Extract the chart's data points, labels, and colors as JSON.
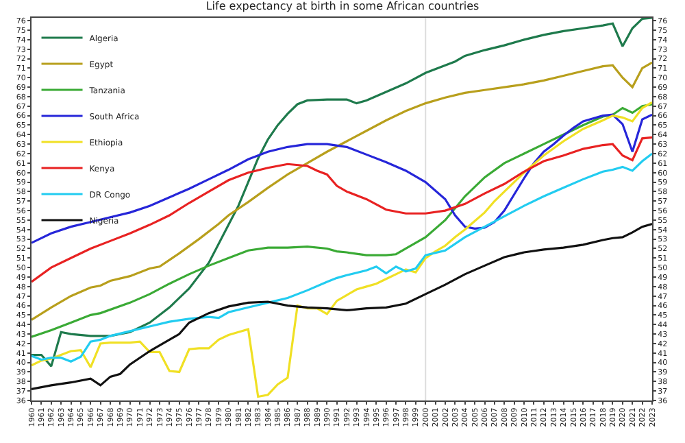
{
  "chart_data": {
    "type": "line",
    "title": "Life expectancy at birth in some African countries",
    "xlim": [
      1960,
      2023
    ],
    "xticks": [
      1960,
      1961,
      1962,
      1963,
      1964,
      1965,
      1966,
      1967,
      1968,
      1969,
      1970,
      1971,
      1972,
      1973,
      1974,
      1975,
      1976,
      1977,
      1978,
      1979,
      1980,
      1981,
      1982,
      1983,
      1984,
      1985,
      1986,
      1987,
      1988,
      1989,
      1990,
      1991,
      1992,
      1993,
      1994,
      1995,
      1996,
      1997,
      1998,
      1999,
      2000,
      2001,
      2002,
      2003,
      2004,
      2005,
      2006,
      2007,
      2008,
      2009,
      2010,
      2011,
      2012,
      2013,
      2014,
      2015,
      2016,
      2017,
      2018,
      2019,
      2020,
      2021,
      2022,
      2023
    ],
    "ylim": [
      36,
      76.3
    ],
    "yticks": [
      36,
      37,
      38,
      39,
      40,
      41,
      42,
      43,
      44,
      45,
      46,
      47,
      48,
      49,
      50,
      51,
      52,
      53,
      54,
      55,
      56,
      57,
      58,
      59,
      60,
      61,
      62,
      63,
      64,
      65,
      66,
      67,
      68,
      69,
      70,
      71,
      72,
      73,
      74,
      75,
      76
    ],
    "y2lim": [
      36,
      76.3
    ],
    "y2ticks": [
      36,
      37,
      38,
      39,
      40,
      41,
      42,
      43,
      44,
      45,
      46,
      47,
      48,
      49,
      50,
      51,
      52,
      53,
      54,
      55,
      56,
      57,
      58,
      59,
      60,
      61,
      62,
      63,
      64,
      65,
      66,
      67,
      68,
      69,
      70,
      71,
      72,
      73,
      74,
      75,
      76
    ],
    "grid": false,
    "legend": "top left",
    "marker": "none",
    "line_style": "solid",
    "ref_lines": [
      {
        "axis": "x",
        "value": 2000,
        "label": null,
        "color": "#dddddd"
      }
    ],
    "series": [
      {
        "name": "Algeria",
        "color": "#1e7a4c",
        "x": [
          1960,
          1961,
          1962,
          1963,
          1964,
          1966,
          1968,
          1970,
          1972,
          1974,
          1976,
          1978,
          1980,
          1981,
          1982,
          1983,
          1984,
          1985,
          1986,
          1987,
          1988,
          1990,
          1992,
          1993,
          1994,
          1996,
          1998,
          2000,
          2002,
          2003,
          2004,
          2006,
          2008,
          2010,
          2012,
          2014,
          2016,
          2018,
          2019,
          2020,
          2021,
          2022,
          2023
        ],
        "values": [
          40.8,
          40.8,
          39.6,
          43.2,
          43.0,
          42.8,
          42.8,
          43.2,
          44.2,
          45.8,
          47.8,
          50.5,
          54.5,
          56.5,
          59.0,
          61.5,
          63.5,
          65.0,
          66.2,
          67.2,
          67.6,
          67.7,
          67.7,
          67.3,
          67.6,
          68.5,
          69.4,
          70.5,
          71.3,
          71.7,
          72.3,
          72.9,
          73.4,
          74.0,
          74.5,
          74.9,
          75.2,
          75.5,
          75.7,
          73.3,
          75.2,
          76.2,
          76.3
        ]
      },
      {
        "name": "Egypt",
        "color": "#b89f1c",
        "x": [
          1960,
          1962,
          1964,
          1966,
          1967,
          1968,
          1970,
          1972,
          1973,
          1975,
          1977,
          1979,
          1980,
          1982,
          1984,
          1986,
          1988,
          1990,
          1992,
          1994,
          1996,
          1998,
          2000,
          2002,
          2004,
          2006,
          2008,
          2010,
          2012,
          2014,
          2016,
          2018,
          2019,
          2020,
          2021,
          2022,
          2023
        ],
        "values": [
          44.5,
          45.8,
          47.0,
          47.9,
          48.1,
          48.6,
          49.1,
          49.9,
          50.1,
          51.5,
          53.0,
          54.6,
          55.5,
          56.9,
          58.4,
          59.8,
          61.0,
          62.2,
          63.3,
          64.4,
          65.5,
          66.5,
          67.3,
          67.9,
          68.4,
          68.7,
          69.0,
          69.3,
          69.7,
          70.2,
          70.7,
          71.2,
          71.3,
          70.0,
          69.0,
          71.0,
          71.6
        ]
      },
      {
        "name": "Tanzania",
        "color": "#3aaa35",
        "x": [
          1960,
          1962,
          1964,
          1966,
          1967,
          1970,
          1972,
          1974,
          1976,
          1978,
          1980,
          1982,
          1984,
          1986,
          1988,
          1990,
          1991,
          1992,
          1994,
          1996,
          1997,
          1998,
          2000,
          2002,
          2004,
          2006,
          2008,
          2010,
          2012,
          2014,
          2016,
          2018,
          2019,
          2020,
          2021,
          2022,
          2023
        ],
        "values": [
          42.7,
          43.4,
          44.2,
          45.0,
          45.2,
          46.3,
          47.2,
          48.3,
          49.3,
          50.2,
          51.0,
          51.8,
          52.1,
          52.1,
          52.2,
          52.0,
          51.7,
          51.6,
          51.3,
          51.3,
          51.4,
          52.0,
          53.2,
          55.0,
          57.5,
          59.5,
          61.0,
          62.0,
          63.0,
          64.0,
          65.0,
          65.9,
          66.1,
          66.8,
          66.3,
          67.0,
          67.2
        ]
      },
      {
        "name": "South Africa",
        "color": "#2626d9",
        "x": [
          1960,
          1962,
          1964,
          1966,
          1968,
          1970,
          1972,
          1974,
          1976,
          1978,
          1980,
          1982,
          1984,
          1986,
          1988,
          1990,
          1992,
          1994,
          1996,
          1998,
          2000,
          2002,
          2003,
          2004,
          2005,
          2006,
          2007,
          2008,
          2009,
          2010,
          2011,
          2012,
          2013,
          2014,
          2015,
          2016,
          2017,
          2018,
          2019,
          2020,
          2021,
          2022,
          2023
        ],
        "values": [
          52.6,
          53.6,
          54.3,
          54.8,
          55.3,
          55.8,
          56.5,
          57.4,
          58.3,
          59.3,
          60.3,
          61.4,
          62.2,
          62.7,
          63.0,
          63.0,
          62.7,
          61.9,
          61.1,
          60.2,
          59.0,
          57.2,
          55.5,
          54.3,
          54.1,
          54.2,
          54.8,
          56.0,
          57.7,
          59.4,
          61.0,
          62.2,
          63.0,
          63.9,
          64.7,
          65.4,
          65.7,
          66.0,
          66.1,
          65.1,
          62.2,
          65.6,
          66.1
        ]
      },
      {
        "name": "Ethiopia",
        "color": "#f0e024",
        "x": [
          1960,
          1961,
          1962,
          1963,
          1964,
          1965,
          1966,
          1967,
          1968,
          1970,
          1971,
          1972,
          1973,
          1974,
          1975,
          1976,
          1977,
          1978,
          1979,
          1980,
          1981,
          1982,
          1983,
          1984,
          1985,
          1986,
          1987,
          1988,
          1989,
          1990,
          1991,
          1992,
          1993,
          1994,
          1995,
          1996,
          1997,
          1998,
          1999,
          2000,
          2001,
          2002,
          2003,
          2004,
          2005,
          2006,
          2007,
          2008,
          2010,
          2012,
          2014,
          2016,
          2018,
          2019,
          2020,
          2021,
          2022,
          2023
        ],
        "values": [
          39.7,
          40.2,
          40.4,
          40.8,
          41.2,
          41.3,
          39.5,
          42.0,
          42.1,
          42.1,
          42.2,
          41.1,
          41.1,
          39.1,
          39.0,
          41.4,
          41.5,
          41.5,
          42.4,
          42.9,
          43.2,
          43.5,
          36.4,
          36.6,
          37.7,
          38.4,
          46.0,
          45.7,
          45.7,
          45.1,
          46.5,
          47.1,
          47.7,
          48.0,
          48.3,
          48.8,
          49.3,
          49.8,
          49.5,
          51.0,
          51.7,
          52.3,
          53.2,
          54.0,
          54.9,
          55.8,
          57.0,
          58.0,
          60.0,
          61.8,
          63.3,
          64.6,
          65.5,
          66.0,
          65.8,
          65.4,
          66.8,
          67.4
        ]
      },
      {
        "name": "Kenya",
        "color": "#e82222",
        "x": [
          1960,
          1962,
          1964,
          1966,
          1968,
          1970,
          1972,
          1974,
          1976,
          1978,
          1980,
          1982,
          1984,
          1986,
          1988,
          1989,
          1990,
          1991,
          1992,
          1994,
          1996,
          1998,
          2000,
          2002,
          2004,
          2006,
          2008,
          2010,
          2012,
          2014,
          2016,
          2018,
          2019,
          2020,
          2021,
          2022,
          2023
        ],
        "values": [
          48.5,
          50.0,
          51.0,
          52.0,
          52.8,
          53.6,
          54.5,
          55.5,
          56.8,
          58.0,
          59.2,
          60.0,
          60.5,
          60.9,
          60.7,
          60.2,
          59.8,
          58.6,
          58.0,
          57.2,
          56.1,
          55.7,
          55.7,
          56.0,
          56.7,
          57.8,
          58.8,
          60.1,
          61.2,
          61.8,
          62.5,
          62.9,
          63.0,
          61.8,
          61.3,
          63.6,
          63.7
        ]
      },
      {
        "name": "DR Congo",
        "color": "#22ccf0",
        "x": [
          1960,
          1961,
          1962,
          1963,
          1964,
          1965,
          1966,
          1967,
          1968,
          1970,
          1972,
          1974,
          1976,
          1978,
          1979,
          1980,
          1982,
          1984,
          1986,
          1988,
          1990,
          1991,
          1992,
          1994,
          1995,
          1996,
          1997,
          1998,
          1999,
          2000,
          2002,
          2004,
          2006,
          2008,
          2010,
          2012,
          2014,
          2016,
          2018,
          2019,
          2020,
          2021,
          2022,
          2023
        ],
        "values": [
          40.7,
          40.3,
          40.5,
          40.5,
          40.1,
          40.6,
          42.2,
          42.4,
          42.8,
          43.3,
          43.8,
          44.3,
          44.6,
          44.8,
          44.7,
          45.3,
          45.8,
          46.3,
          46.8,
          47.6,
          48.5,
          48.9,
          49.2,
          49.7,
          50.1,
          49.4,
          50.1,
          49.6,
          49.9,
          51.3,
          51.8,
          53.2,
          54.3,
          55.4,
          56.5,
          57.5,
          58.4,
          59.3,
          60.1,
          60.3,
          60.6,
          60.2,
          61.2,
          62.0
        ]
      },
      {
        "name": "Nigeria",
        "color": "#111111",
        "x": [
          1960,
          1962,
          1964,
          1966,
          1967,
          1968,
          1969,
          1970,
          1972,
          1974,
          1975,
          1976,
          1978,
          1980,
          1982,
          1984,
          1986,
          1988,
          1990,
          1992,
          1994,
          1996,
          1998,
          2000,
          2002,
          2004,
          2006,
          2008,
          2010,
          2012,
          2014,
          2016,
          2018,
          2019,
          2020,
          2021,
          2022,
          2023
        ],
        "values": [
          37.2,
          37.6,
          37.9,
          38.3,
          37.6,
          38.5,
          38.8,
          39.8,
          41.2,
          42.4,
          43.0,
          44.2,
          45.2,
          45.9,
          46.3,
          46.4,
          46.0,
          45.8,
          45.7,
          45.5,
          45.7,
          45.8,
          46.2,
          47.2,
          48.2,
          49.3,
          50.2,
          51.1,
          51.6,
          51.9,
          52.1,
          52.4,
          52.9,
          53.1,
          53.2,
          53.7,
          54.3,
          54.6
        ]
      }
    ]
  }
}
